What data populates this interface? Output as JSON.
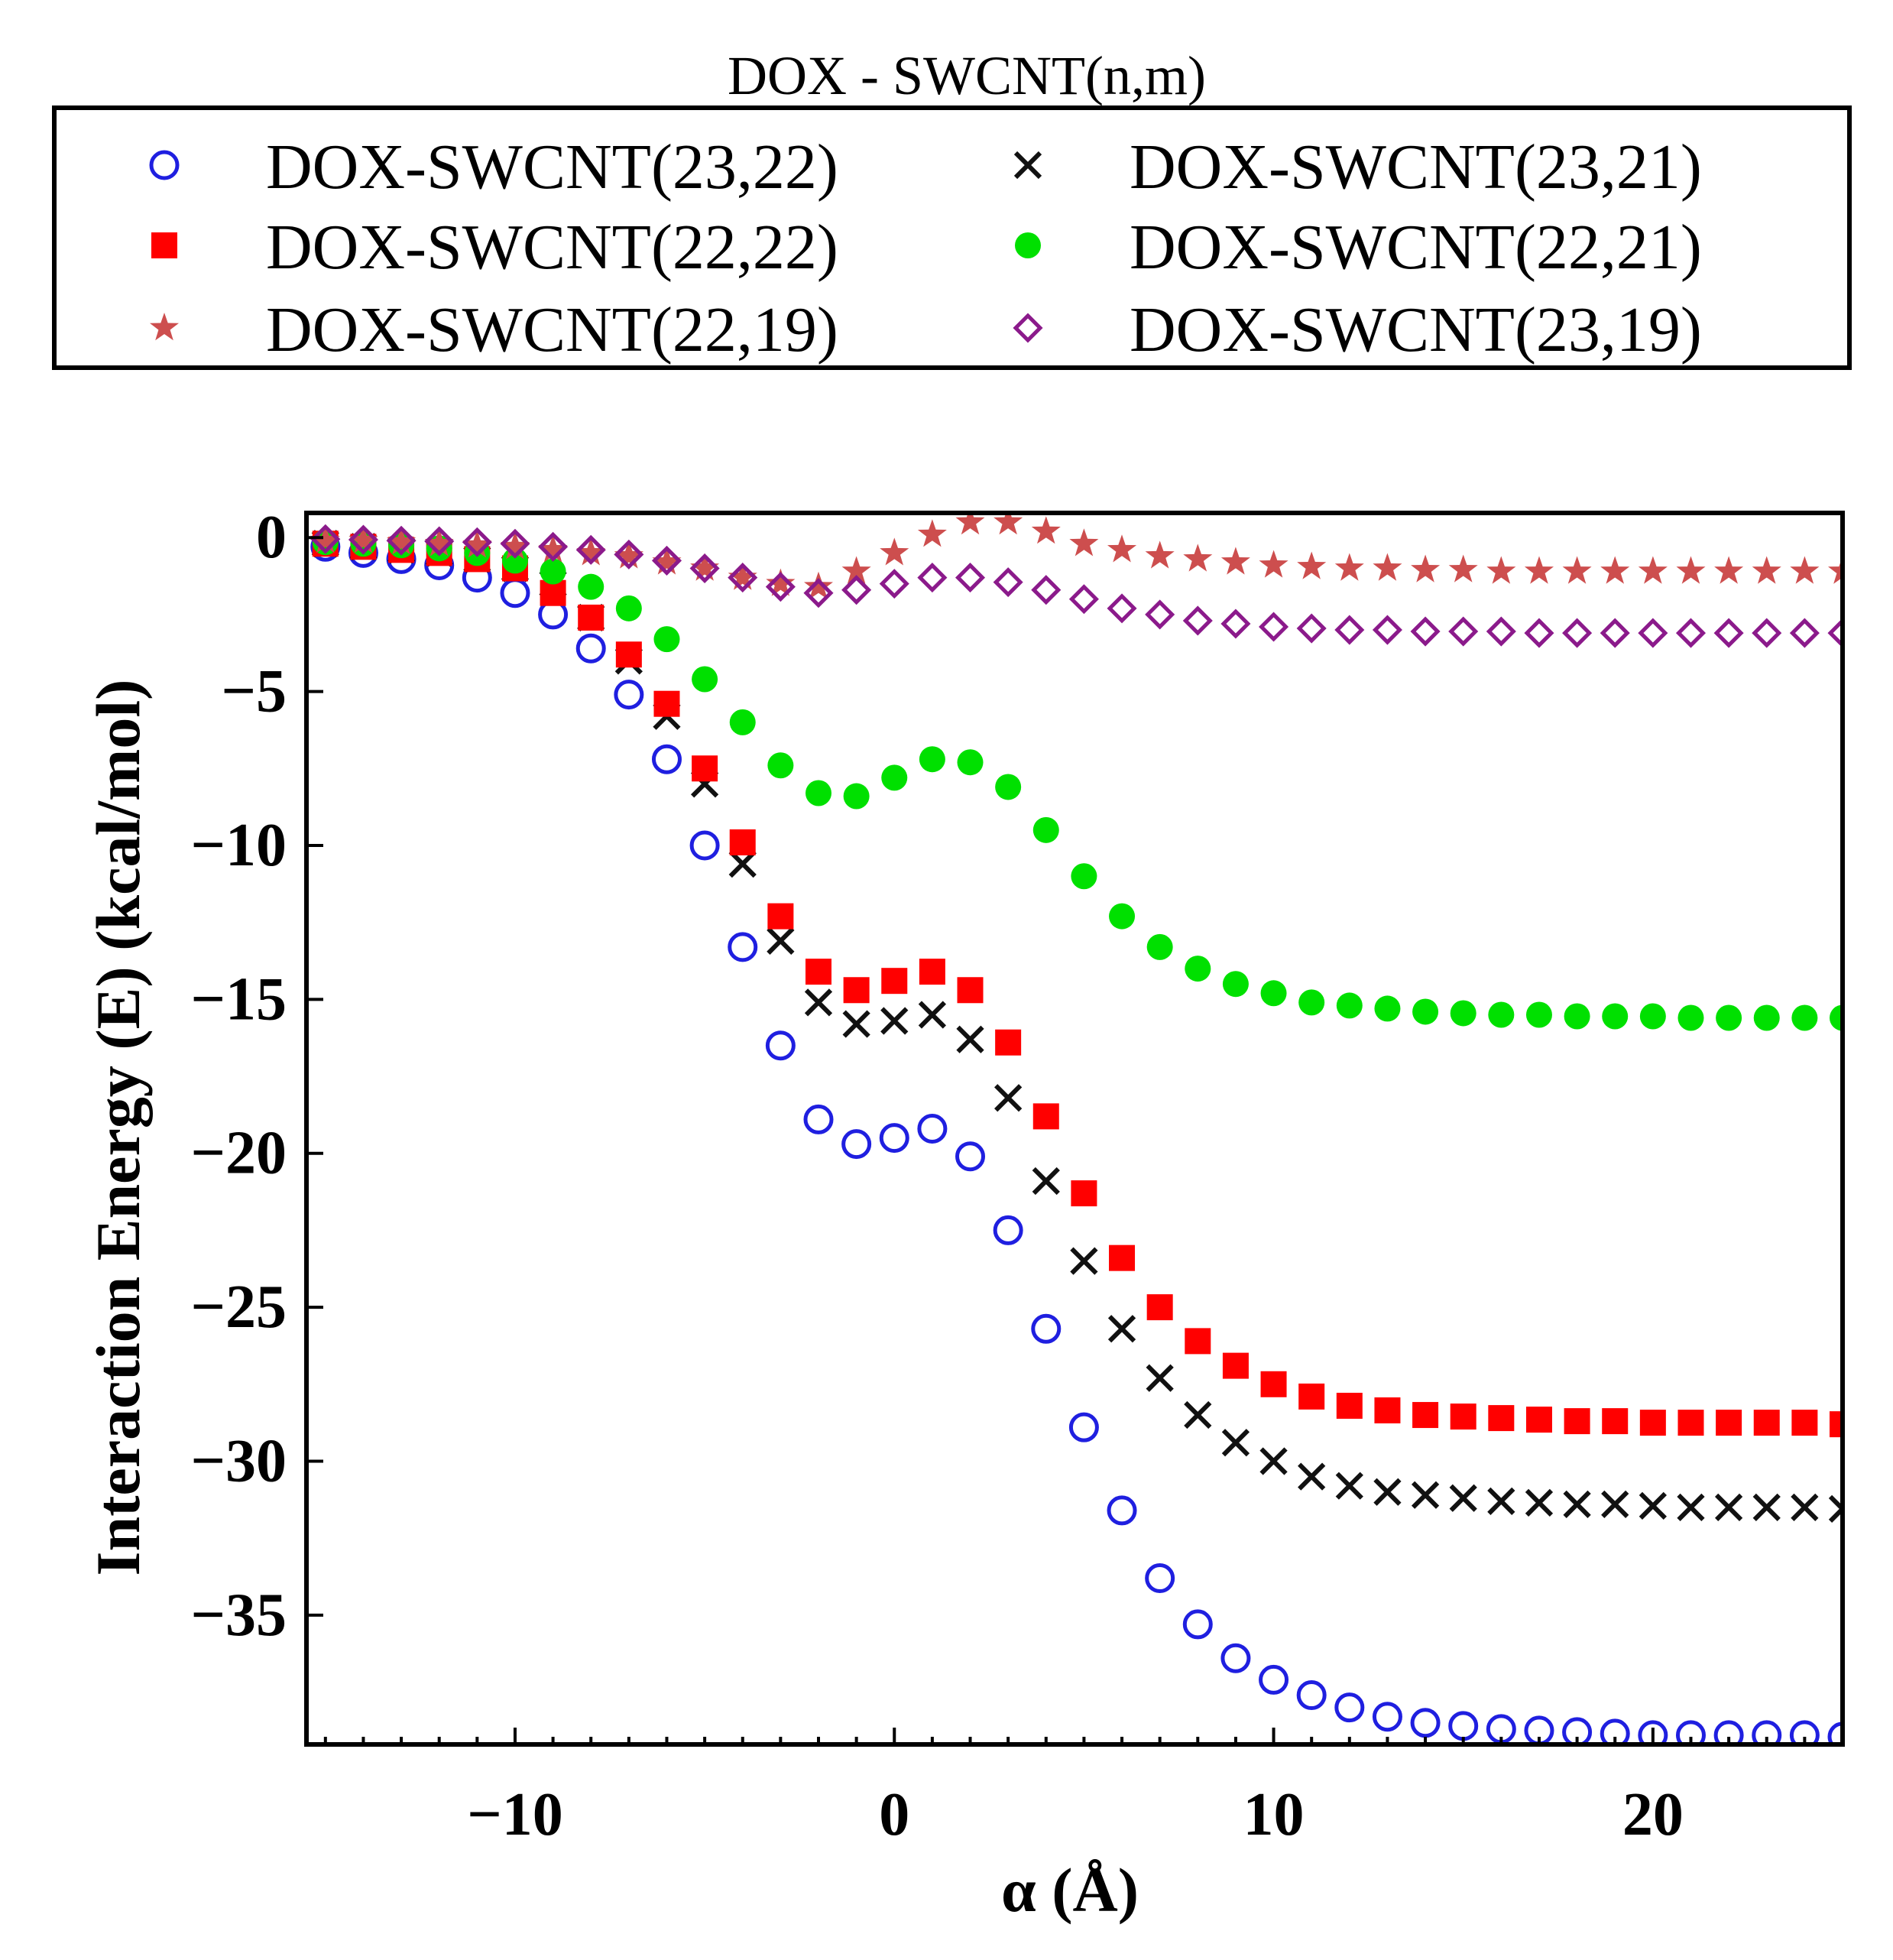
{
  "chart_data": {
    "type": "scatter",
    "title": "DOX - SWCNT(n,m)",
    "xlabel": "α (Å)",
    "ylabel": "Interaction Energy (E) (kcal/mol)",
    "xlim": [
      -15.5,
      25
    ],
    "ylim": [
      -39.2,
      0.8
    ],
    "x_ticks": [
      -10,
      0,
      10,
      20
    ],
    "x_tick_labels": [
      "−10",
      "0",
      "10",
      "20"
    ],
    "y_ticks": [
      0,
      -5,
      -10,
      -15,
      -20,
      -25,
      -30,
      -35
    ],
    "y_tick_labels": [
      "0",
      "−5",
      "−10",
      "−15",
      "−20",
      "−25",
      "−30",
      "−35"
    ],
    "grid": false,
    "legend_position": "top",
    "x": [
      -15,
      -14,
      -13,
      -12,
      -11,
      -10,
      -9,
      -8,
      -7,
      -6,
      -5,
      -4,
      -3,
      -2,
      -1,
      0,
      1,
      2,
      3,
      4,
      5,
      6,
      7,
      8,
      9,
      10,
      11,
      12,
      13,
      14,
      15,
      16,
      17,
      18,
      19,
      20,
      21,
      22,
      23,
      24,
      25
    ],
    "series": [
      {
        "name": "DOX-SWCNT(23,22)",
        "marker": "circle-open",
        "color": "#1f1fe0",
        "values": [
          -0.3,
          -0.5,
          -0.7,
          -0.9,
          -1.3,
          -1.8,
          -2.5,
          -3.6,
          -5.1,
          -7.2,
          -10.0,
          -13.3,
          -16.5,
          -18.9,
          -19.7,
          -19.5,
          -19.2,
          -20.1,
          -22.5,
          -25.7,
          -28.9,
          -31.6,
          -33.8,
          -35.3,
          -36.4,
          -37.1,
          -37.6,
          -38.0,
          -38.3,
          -38.5,
          -38.6,
          -38.7,
          -38.75,
          -38.8,
          -38.85,
          -38.9,
          -38.9,
          -38.9,
          -38.9,
          -38.9,
          -38.95
        ]
      },
      {
        "name": "DOX-SWCNT(23,21)",
        "marker": "x",
        "color": "#111111",
        "values": [
          -0.2,
          -0.3,
          -0.4,
          -0.5,
          -0.7,
          -1.0,
          -1.5,
          -2.6,
          -4.0,
          -5.8,
          -8.0,
          -10.6,
          -13.1,
          -15.1,
          -15.8,
          -15.7,
          -15.5,
          -16.3,
          -18.2,
          -20.9,
          -23.5,
          -25.7,
          -27.3,
          -28.5,
          -29.4,
          -30.0,
          -30.5,
          -30.8,
          -31.0,
          -31.1,
          -31.2,
          -31.3,
          -31.35,
          -31.4,
          -31.4,
          -31.45,
          -31.5,
          -31.5,
          -31.5,
          -31.5,
          -31.55
        ]
      },
      {
        "name": "DOX-SWCNT(22,22)",
        "marker": "square",
        "color": "#ff0000",
        "values": [
          -0.2,
          -0.3,
          -0.4,
          -0.5,
          -0.7,
          -1.0,
          -1.8,
          -2.6,
          -3.8,
          -5.4,
          -7.5,
          -9.9,
          -12.3,
          -14.1,
          -14.7,
          -14.4,
          -14.1,
          -14.7,
          -16.4,
          -18.8,
          -21.3,
          -23.4,
          -25.0,
          -26.1,
          -26.9,
          -27.5,
          -27.9,
          -28.2,
          -28.35,
          -28.5,
          -28.55,
          -28.6,
          -28.65,
          -28.7,
          -28.7,
          -28.75,
          -28.75,
          -28.75,
          -28.75,
          -28.75,
          -28.8
        ]
      },
      {
        "name": "DOX-SWCNT(22,21)",
        "marker": "circle-filled",
        "color": "#00e000",
        "values": [
          -0.15,
          -0.2,
          -0.25,
          -0.35,
          -0.5,
          -0.75,
          -1.1,
          -1.6,
          -2.3,
          -3.3,
          -4.6,
          -6.0,
          -7.4,
          -8.3,
          -8.4,
          -7.8,
          -7.2,
          -7.3,
          -8.1,
          -9.5,
          -11.0,
          -12.3,
          -13.3,
          -14.0,
          -14.5,
          -14.8,
          -15.1,
          -15.2,
          -15.3,
          -15.4,
          -15.45,
          -15.5,
          -15.5,
          -15.55,
          -15.55,
          -15.55,
          -15.6,
          -15.6,
          -15.6,
          -15.6,
          -15.6
        ]
      },
      {
        "name": "DOX-SWCNT(22,19)",
        "marker": "star",
        "color": "#cd4e4e",
        "values": [
          -0.1,
          -0.1,
          -0.15,
          -0.2,
          -0.25,
          -0.3,
          -0.4,
          -0.5,
          -0.6,
          -0.8,
          -1.0,
          -1.3,
          -1.5,
          -1.6,
          -1.1,
          -0.5,
          0.1,
          0.5,
          0.5,
          0.2,
          -0.2,
          -0.4,
          -0.6,
          -0.7,
          -0.8,
          -0.9,
          -0.95,
          -1.0,
          -1.0,
          -1.05,
          -1.05,
          -1.1,
          -1.1,
          -1.1,
          -1.1,
          -1.1,
          -1.1,
          -1.1,
          -1.1,
          -1.1,
          -1.1
        ]
      },
      {
        "name": "DOX-SWCNT(23,19)",
        "marker": "diamond-open",
        "color": "#8b1a8b",
        "values": [
          -0.05,
          -0.07,
          -0.1,
          -0.12,
          -0.15,
          -0.2,
          -0.3,
          -0.4,
          -0.55,
          -0.75,
          -1.0,
          -1.3,
          -1.6,
          -1.8,
          -1.7,
          -1.5,
          -1.3,
          -1.3,
          -1.45,
          -1.7,
          -2.0,
          -2.3,
          -2.5,
          -2.7,
          -2.8,
          -2.9,
          -2.95,
          -3.0,
          -3.0,
          -3.05,
          -3.05,
          -3.05,
          -3.1,
          -3.1,
          -3.1,
          -3.1,
          -3.1,
          -3.1,
          -3.1,
          -3.1,
          -3.1
        ]
      }
    ]
  }
}
